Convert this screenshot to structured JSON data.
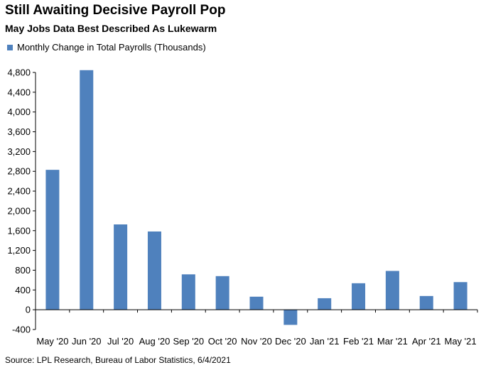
{
  "colors": {
    "bar": "#4f81bd",
    "axis": "#000000"
  },
  "chart_data": {
    "type": "bar",
    "title": "Still Awaiting Decisive Payroll Pop",
    "subtitle": "May Jobs Data Best Described As Lukewarm",
    "legend_placement": "top-left",
    "grid": false,
    "series": [
      {
        "name": "Monthly Change in Total Payrolls (Thousands)",
        "values": [
          2830,
          4846,
          1726,
          1583,
          716,
          680,
          264,
          -306,
          233,
          536,
          785,
          278,
          559
        ]
      }
    ],
    "categories": [
      "May '20",
      "Jun '20",
      "Jul '20",
      "Aug '20",
      "Sep '20",
      "Oct '20",
      "Nov '20",
      "Dec '20",
      "Jan '21",
      "Feb '21",
      "Mar '21",
      "Apr '21",
      "May '21"
    ],
    "yticks": [
      -400,
      0,
      400,
      800,
      1200,
      1600,
      2000,
      2400,
      2800,
      3200,
      3600,
      4000,
      4400,
      4800
    ],
    "ytick_labels": [
      "-400",
      "0",
      "400",
      "800",
      "1,200",
      "1,600",
      "2,000",
      "2,400",
      "2,800",
      "3,200",
      "3,600",
      "4,000",
      "4,400",
      "4,800"
    ],
    "ylim": [
      -400,
      4800
    ],
    "source": "Source: LPL Research, Bureau of Labor Statistics, 6/4/2021"
  }
}
